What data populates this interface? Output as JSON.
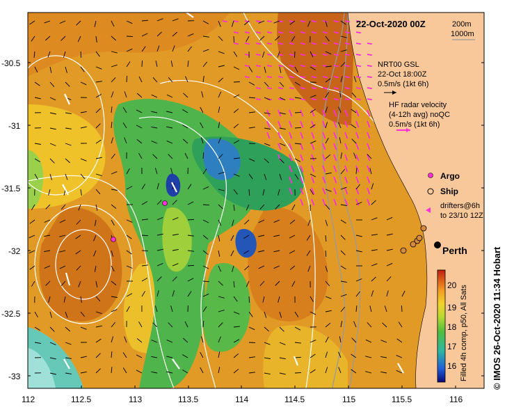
{
  "map": {
    "title": "22-Oct-2020 00Z",
    "isobath_labels": [
      "200m",
      "1000m"
    ],
    "model_label": [
      "NRT00 GSL",
      "22-Oct 18:00Z",
      "0.5m/s (1kt 6h)"
    ],
    "radar_label": [
      "HF radar velocity",
      "(4-12h avg) noQC",
      "0.5m/s (1kt 6h)"
    ],
    "legend": {
      "argo": "Argo",
      "ship": "Ship",
      "drifters": [
        "drifters@6h",
        "to 23/10 12Z"
      ]
    },
    "city": "Perth",
    "colorbar_ticks": [
      "20",
      "19",
      "18",
      "17",
      "16"
    ],
    "colorbar_label": "Filled 4h comp, p50, All Sats",
    "credit": "© IMOS 26-Oct-2020 11:34 Hobart",
    "y_ticks": [
      "-30.5",
      "-31",
      "-31.5",
      "-32",
      "-32.5",
      "-33"
    ],
    "x_ticks": [
      "112",
      "112.5",
      "113",
      "113.5",
      "114",
      "114.5",
      "115",
      "115.5",
      "116"
    ],
    "colors": {
      "land": "#f9c89a",
      "radar_arrow": "#ff2fd8",
      "model_arrow": "#000000",
      "contour": "#ffffff",
      "warm": "#d9781f",
      "cool": "#2f9a4a"
    }
  }
}
